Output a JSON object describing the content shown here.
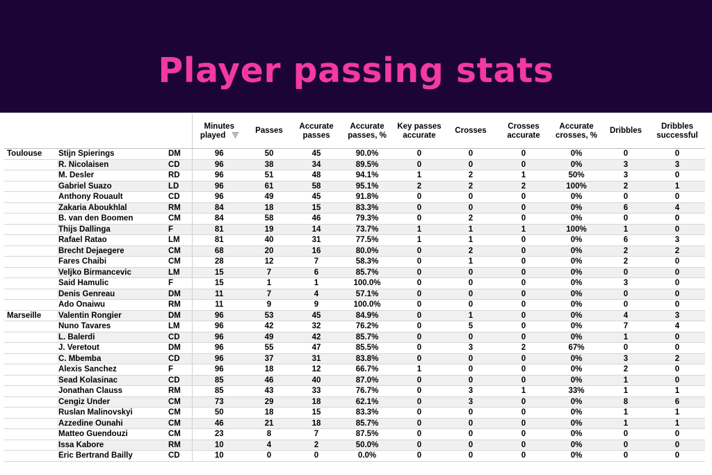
{
  "title": "Player passing stats",
  "chart_data": {
    "type": "table",
    "sort_icon": "sort-descending-icon",
    "columns": [
      "Minutes played",
      "Passes",
      "Accurate passes",
      "Accurate passes, %",
      "Key passes accurate",
      "Crosses",
      "Crosses accurate",
      "Accurate crosses, %",
      "Dribbles",
      "Dribbles successful"
    ],
    "rows": [
      {
        "team": "Toulouse",
        "player": "Stijn Spierings",
        "pos": "DM",
        "values": [
          "96",
          "50",
          "45",
          "90.0%",
          "0",
          "0",
          "0",
          "0%",
          "0",
          "0"
        ]
      },
      {
        "team": "",
        "player": "R. Nicolaisen",
        "pos": "CD",
        "values": [
          "96",
          "38",
          "34",
          "89.5%",
          "0",
          "0",
          "0",
          "0%",
          "3",
          "3"
        ]
      },
      {
        "team": "",
        "player": "M. Desler",
        "pos": "RD",
        "values": [
          "96",
          "51",
          "48",
          "94.1%",
          "1",
          "2",
          "1",
          "50%",
          "3",
          "0"
        ]
      },
      {
        "team": "",
        "player": "Gabriel Suazo",
        "pos": "LD",
        "values": [
          "96",
          "61",
          "58",
          "95.1%",
          "2",
          "2",
          "2",
          "100%",
          "2",
          "1"
        ]
      },
      {
        "team": "",
        "player": "Anthony Rouault",
        "pos": "CD",
        "values": [
          "96",
          "49",
          "45",
          "91.8%",
          "0",
          "0",
          "0",
          "0%",
          "0",
          "0"
        ]
      },
      {
        "team": "",
        "player": "Zakaria Aboukhlal",
        "pos": "RM",
        "values": [
          "84",
          "18",
          "15",
          "83.3%",
          "0",
          "0",
          "0",
          "0%",
          "6",
          "4"
        ]
      },
      {
        "team": "",
        "player": "B. van den Boomen",
        "pos": "CM",
        "values": [
          "84",
          "58",
          "46",
          "79.3%",
          "0",
          "2",
          "0",
          "0%",
          "0",
          "0"
        ]
      },
      {
        "team": "",
        "player": "Thijs Dallinga",
        "pos": "F",
        "values": [
          "81",
          "19",
          "14",
          "73.7%",
          "1",
          "1",
          "1",
          "100%",
          "1",
          "0"
        ]
      },
      {
        "team": "",
        "player": "Rafael Ratao",
        "pos": "LM",
        "values": [
          "81",
          "40",
          "31",
          "77.5%",
          "1",
          "1",
          "0",
          "0%",
          "6",
          "3"
        ]
      },
      {
        "team": "",
        "player": "Brecht Dejaegere",
        "pos": "CM",
        "values": [
          "68",
          "20",
          "16",
          "80.0%",
          "0",
          "2",
          "0",
          "0%",
          "2",
          "2"
        ]
      },
      {
        "team": "",
        "player": "Fares Chaibi",
        "pos": "CM",
        "values": [
          "28",
          "12",
          "7",
          "58.3%",
          "0",
          "1",
          "0",
          "0%",
          "2",
          "0"
        ]
      },
      {
        "team": "",
        "player": "Veljko Birmancevic",
        "pos": "LM",
        "values": [
          "15",
          "7",
          "6",
          "85.7%",
          "0",
          "0",
          "0",
          "0%",
          "0",
          "0"
        ]
      },
      {
        "team": "",
        "player": "Said Hamulic",
        "pos": "F",
        "values": [
          "15",
          "1",
          "1",
          "100.0%",
          "0",
          "0",
          "0",
          "0%",
          "3",
          "0"
        ]
      },
      {
        "team": "",
        "player": "Denis Genreau",
        "pos": "DM",
        "values": [
          "11",
          "7",
          "4",
          "57.1%",
          "0",
          "0",
          "0",
          "0%",
          "0",
          "0"
        ]
      },
      {
        "team": "",
        "player": "Ado Onaiwu",
        "pos": "RM",
        "values": [
          "11",
          "9",
          "9",
          "100.0%",
          "0",
          "0",
          "0",
          "0%",
          "0",
          "0"
        ]
      },
      {
        "team": "Marseille",
        "player": "Valentin Rongier",
        "pos": "DM",
        "values": [
          "96",
          "53",
          "45",
          "84.9%",
          "0",
          "1",
          "0",
          "0%",
          "4",
          "3"
        ]
      },
      {
        "team": "",
        "player": "Nuno Tavares",
        "pos": "LM",
        "values": [
          "96",
          "42",
          "32",
          "76.2%",
          "0",
          "5",
          "0",
          "0%",
          "7",
          "4"
        ]
      },
      {
        "team": "",
        "player": "L. Balerdi",
        "pos": "CD",
        "values": [
          "96",
          "49",
          "42",
          "85.7%",
          "0",
          "0",
          "0",
          "0%",
          "1",
          "0"
        ]
      },
      {
        "team": "",
        "player": "J. Veretout",
        "pos": "DM",
        "values": [
          "96",
          "55",
          "47",
          "85.5%",
          "0",
          "3",
          "2",
          "67%",
          "0",
          "0"
        ]
      },
      {
        "team": "",
        "player": "C. Mbemba",
        "pos": "CD",
        "values": [
          "96",
          "37",
          "31",
          "83.8%",
          "0",
          "0",
          "0",
          "0%",
          "3",
          "2"
        ]
      },
      {
        "team": "",
        "player": "Alexis Sanchez",
        "pos": "F",
        "values": [
          "96",
          "18",
          "12",
          "66.7%",
          "1",
          "0",
          "0",
          "0%",
          "2",
          "0"
        ]
      },
      {
        "team": "",
        "player": "Sead Kolasinac",
        "pos": "CD",
        "values": [
          "85",
          "46",
          "40",
          "87.0%",
          "0",
          "0",
          "0",
          "0%",
          "1",
          "0"
        ]
      },
      {
        "team": "",
        "player": "Jonathan Clauss",
        "pos": "RM",
        "values": [
          "85",
          "43",
          "33",
          "76.7%",
          "0",
          "3",
          "1",
          "33%",
          "1",
          "1"
        ]
      },
      {
        "team": "",
        "player": "Cengiz Under",
        "pos": "CM",
        "values": [
          "73",
          "29",
          "18",
          "62.1%",
          "0",
          "3",
          "0",
          "0%",
          "8",
          "6"
        ]
      },
      {
        "team": "",
        "player": "Ruslan Malinovskyi",
        "pos": "CM",
        "values": [
          "50",
          "18",
          "15",
          "83.3%",
          "0",
          "0",
          "0",
          "0%",
          "1",
          "1"
        ]
      },
      {
        "team": "",
        "player": "Azzedine Ounahi",
        "pos": "CM",
        "values": [
          "46",
          "21",
          "18",
          "85.7%",
          "0",
          "0",
          "0",
          "0%",
          "1",
          "1"
        ]
      },
      {
        "team": "",
        "player": "Matteo Guendouzi",
        "pos": "CM",
        "values": [
          "23",
          "8",
          "7",
          "87.5%",
          "0",
          "0",
          "0",
          "0%",
          "0",
          "0"
        ]
      },
      {
        "team": "",
        "player": "Issa Kabore",
        "pos": "RM",
        "values": [
          "10",
          "4",
          "2",
          "50.0%",
          "0",
          "0",
          "0",
          "0%",
          "0",
          "0"
        ]
      },
      {
        "team": "",
        "player": "Eric Bertrand Bailly",
        "pos": "CD",
        "values": [
          "10",
          "0",
          "0",
          "0.0%",
          "0",
          "0",
          "0",
          "0%",
          "0",
          "0"
        ]
      }
    ]
  },
  "colors": {
    "header_bg": "#1c0437",
    "title": "#f23aa0",
    "stripe": "#f0f0f0"
  }
}
